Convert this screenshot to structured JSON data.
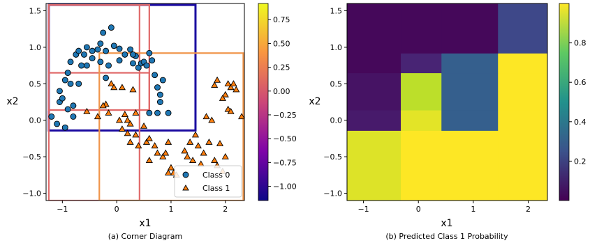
{
  "chart_data": [
    {
      "type": "scatter",
      "caption": "(a)  Corner Diagram",
      "xlabel": "x1",
      "ylabel": "x2",
      "xlim": [
        -1.3,
        2.35
      ],
      "ylim": [
        -1.1,
        1.6
      ],
      "xticks": [
        -1,
        0,
        1,
        2
      ],
      "yticks": [
        -1.0,
        -0.5,
        0.0,
        0.5,
        1.0,
        1.5
      ],
      "yticklabels": [
        "−1.0",
        "−0.5",
        "0.0",
        "0.5",
        "1.0",
        "1.5"
      ],
      "legend_position": "bottom-right",
      "series": [
        {
          "name": "Class 0",
          "marker": "circle",
          "color": "#1f77b4",
          "points": [
            [
              -1.1,
              -0.05
            ],
            [
              -0.95,
              -0.1
            ],
            [
              -1.05,
              0.25
            ],
            [
              -1.0,
              0.3
            ],
            [
              -1.05,
              0.4
            ],
            [
              -0.85,
              0.5
            ],
            [
              -0.95,
              0.55
            ],
            [
              -0.9,
              0.65
            ],
            [
              -0.7,
              0.5
            ],
            [
              -0.8,
              0.2
            ],
            [
              -0.8,
              0.05
            ],
            [
              -0.9,
              0.15
            ],
            [
              -0.65,
              0.75
            ],
            [
              -0.85,
              0.8
            ],
            [
              -0.75,
              0.9
            ],
            [
              -0.6,
              0.9
            ],
            [
              -0.55,
              0.75
            ],
            [
              -0.45,
              0.85
            ],
            [
              -0.45,
              0.95
            ],
            [
              -0.35,
              0.97
            ],
            [
              -0.3,
              1.05
            ],
            [
              -0.25,
              1.2
            ],
            [
              -0.2,
              0.95
            ],
            [
              -0.1,
              1.27
            ],
            [
              -0.05,
              1.02
            ],
            [
              0.05,
              0.98
            ],
            [
              0.15,
              0.9
            ],
            [
              0.25,
              0.97
            ],
            [
              0.3,
              0.78
            ],
            [
              0.35,
              0.88
            ],
            [
              0.4,
              0.72
            ],
            [
              0.45,
              0.78
            ],
            [
              0.5,
              0.8
            ],
            [
              0.55,
              0.75
            ],
            [
              0.65,
              0.82
            ],
            [
              0.7,
              0.62
            ],
            [
              0.75,
              0.45
            ],
            [
              0.8,
              0.35
            ],
            [
              0.8,
              0.25
            ],
            [
              0.85,
              0.55
            ],
            [
              0.75,
              0.1
            ],
            [
              0.6,
              0.1
            ],
            [
              -0.55,
              1.0
            ],
            [
              -0.3,
              0.8
            ],
            [
              0.05,
              0.82
            ],
            [
              -0.15,
              0.75
            ],
            [
              -0.2,
              0.58
            ],
            [
              -1.2,
              0.05
            ],
            [
              0.6,
              0.92
            ],
            [
              0.3,
              0.9
            ],
            [
              0.95,
              0.1
            ],
            [
              -0.7,
              0.95
            ]
          ]
        },
        {
          "name": "Class 1",
          "marker": "triangle",
          "color": "#ff7f0e",
          "points": [
            [
              -0.55,
              0.12
            ],
            [
              -0.35,
              0.05
            ],
            [
              -0.2,
              0.22
            ],
            [
              -0.15,
              0.1
            ],
            [
              -0.1,
              0.5
            ],
            [
              -0.05,
              0.45
            ],
            [
              0.05,
              0.0
            ],
            [
              0.1,
              0.45
            ],
            [
              0.15,
              0.08
            ],
            [
              0.2,
              0.0
            ],
            [
              0.25,
              -0.05
            ],
            [
              0.3,
              0.42
            ],
            [
              0.35,
              0.1
            ],
            [
              0.1,
              -0.12
            ],
            [
              0.2,
              -0.18
            ],
            [
              0.35,
              -0.2
            ],
            [
              0.5,
              -0.08
            ],
            [
              0.55,
              -0.3
            ],
            [
              0.6,
              -0.25
            ],
            [
              0.7,
              -0.35
            ],
            [
              0.75,
              -0.45
            ],
            [
              0.85,
              -0.5
            ],
            [
              0.9,
              -0.45
            ],
            [
              0.95,
              -0.3
            ],
            [
              1.0,
              -0.65
            ],
            [
              1.05,
              -0.72
            ],
            [
              1.1,
              -0.75
            ],
            [
              0.95,
              -0.72
            ],
            [
              1.25,
              -0.42
            ],
            [
              1.3,
              -0.5
            ],
            [
              1.35,
              -0.3
            ],
            [
              1.45,
              -0.2
            ],
            [
              1.5,
              -0.35
            ],
            [
              1.6,
              -0.45
            ],
            [
              1.7,
              -0.3
            ],
            [
              1.8,
              -0.55
            ],
            [
              1.85,
              -0.62
            ],
            [
              1.9,
              -0.32
            ],
            [
              1.95,
              -0.7
            ],
            [
              2.0,
              -0.5
            ],
            [
              2.05,
              0.15
            ],
            [
              2.1,
              0.12
            ],
            [
              2.0,
              0.35
            ],
            [
              2.05,
              0.5
            ],
            [
              2.1,
              0.45
            ],
            [
              2.15,
              0.5
            ],
            [
              2.2,
              0.42
            ],
            [
              1.85,
              0.55
            ],
            [
              1.8,
              0.48
            ],
            [
              1.95,
              0.3
            ],
            [
              2.3,
              0.05
            ],
            [
              1.75,
              0.0
            ],
            [
              1.65,
              0.05
            ],
            [
              0.4,
              -0.35
            ],
            [
              0.6,
              -0.55
            ],
            [
              1.4,
              -0.55
            ],
            [
              1.55,
              -0.6
            ],
            [
              0.25,
              -0.3
            ],
            [
              -0.25,
              0.2
            ]
          ]
        }
      ],
      "colorbar": {
        "range": [
          -1.15,
          0.92
        ],
        "ticks": [
          0.75,
          0.5,
          0.25,
          0.0,
          -0.25,
          -0.5,
          -0.75,
          -1.0
        ],
        "ticklabels": [
          "0.75",
          "0.50",
          "0.25",
          "0.00",
          "−0.25",
          "−0.50",
          "−0.75",
          "−1.00"
        ]
      },
      "rectangles": [
        {
          "x0": -1.25,
          "x1": 1.45,
          "y0": -0.14,
          "y1": 1.58,
          "value": -1.1,
          "color": "#1a0aa0"
        },
        {
          "x0": -1.25,
          "x1": 0.6,
          "y0": 0.14,
          "y1": 1.58,
          "value": 0.3,
          "color": "#e06a6a"
        },
        {
          "x0": -1.25,
          "x1": 0.6,
          "y0": 0.14,
          "y1": 0.65,
          "value": 0.3,
          "color": "#e06a6a"
        },
        {
          "x0": -1.25,
          "x1": 0.42,
          "y0": -1.1,
          "y1": 1.58,
          "value": 0.3,
          "color": "#e06a6a"
        },
        {
          "x0": -0.32,
          "x1": 2.33,
          "y0": -1.1,
          "y1": 0.92,
          "value": 0.85,
          "color": "#f0954a"
        }
      ]
    },
    {
      "type": "heatmap",
      "caption": "(b) Predicted Class 1 Probability",
      "xlabel": "x1",
      "ylabel": "x2",
      "xlim": [
        -1.3,
        2.35
      ],
      "ylim": [
        -1.1,
        1.6
      ],
      "xticks": [
        -1,
        0,
        1,
        2
      ],
      "xticklabels": [
        "−1",
        "0",
        "1",
        "2"
      ],
      "yticks": [
        -1.0,
        -0.5,
        0.0,
        0.5,
        1.0,
        1.5
      ],
      "yticklabels": [
        "−1.0",
        "−0.5",
        "0.0",
        "0.5",
        "1.0",
        "1.5"
      ],
      "x_edges": [
        -1.3,
        -0.32,
        0.42,
        1.45,
        2.35
      ],
      "y_edges": [
        -1.1,
        -0.14,
        0.14,
        0.65,
        0.92,
        1.6
      ],
      "z_rows_bottom_to_top": [
        [
          0.95,
          1.0,
          1.0,
          1.0
        ],
        [
          0.07,
          0.96,
          0.3,
          1.0
        ],
        [
          0.05,
          0.9,
          0.3,
          1.0
        ],
        [
          0.02,
          0.1,
          0.3,
          1.0
        ],
        [
          0.02,
          0.02,
          0.02,
          0.22
        ]
      ],
      "colorbar": {
        "range": [
          0.0,
          1.0
        ],
        "ticks": [
          0.8,
          0.6,
          0.4,
          0.2
        ],
        "ticklabels": [
          "0.8",
          "0.6",
          "0.4",
          "0.2"
        ]
      }
    }
  ]
}
